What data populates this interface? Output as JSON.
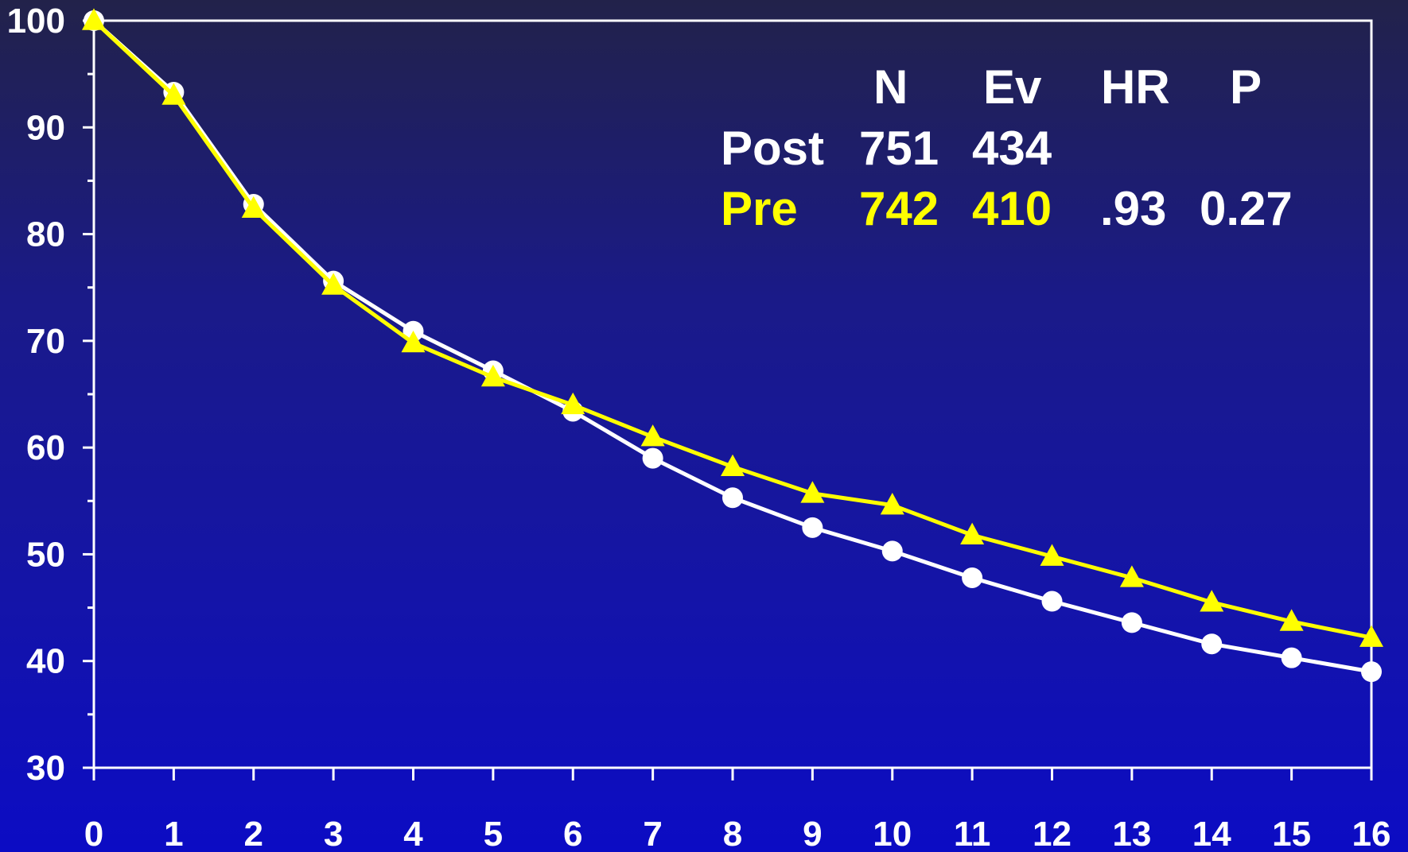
{
  "chart_data": {
    "type": "line",
    "x": [
      0,
      1,
      2,
      3,
      4,
      5,
      6,
      7,
      8,
      9,
      10,
      11,
      12,
      13,
      14,
      15,
      16
    ],
    "xlim": [
      0,
      16
    ],
    "ylim": [
      30,
      100
    ],
    "y_ticks": [
      30,
      40,
      50,
      60,
      70,
      80,
      90,
      100
    ],
    "x_ticks": [
      0,
      1,
      2,
      3,
      4,
      5,
      6,
      7,
      8,
      9,
      10,
      11,
      12,
      13,
      14,
      15,
      16
    ],
    "grid": false,
    "series": [
      {
        "name": "Post",
        "color": "#ffffff",
        "marker": "circle",
        "values": [
          100,
          93.3,
          82.8,
          75.6,
          70.9,
          67.2,
          63.4,
          59.0,
          55.3,
          52.5,
          50.3,
          47.8,
          45.6,
          43.6,
          41.6,
          40.3,
          39.0
        ]
      },
      {
        "name": "Pre",
        "color": "#ffff00",
        "marker": "triangle",
        "values": [
          100,
          93.0,
          82.4,
          75.2,
          69.8,
          66.6,
          64.0,
          61.0,
          58.2,
          55.7,
          54.6,
          51.8,
          49.8,
          47.8,
          45.5,
          43.7,
          42.2
        ]
      }
    ],
    "table": {
      "headers": [
        "N",
        "Ev",
        "HR",
        "P"
      ],
      "rows": [
        {
          "label": "Post",
          "n": "751",
          "ev": "434",
          "hr": "",
          "p": "",
          "color": "#ffffff"
        },
        {
          "label": "Pre",
          "n": "742",
          "ev": "410",
          "hr": ".93",
          "p": "0.27",
          "color": "#ffff00"
        }
      ]
    }
  }
}
